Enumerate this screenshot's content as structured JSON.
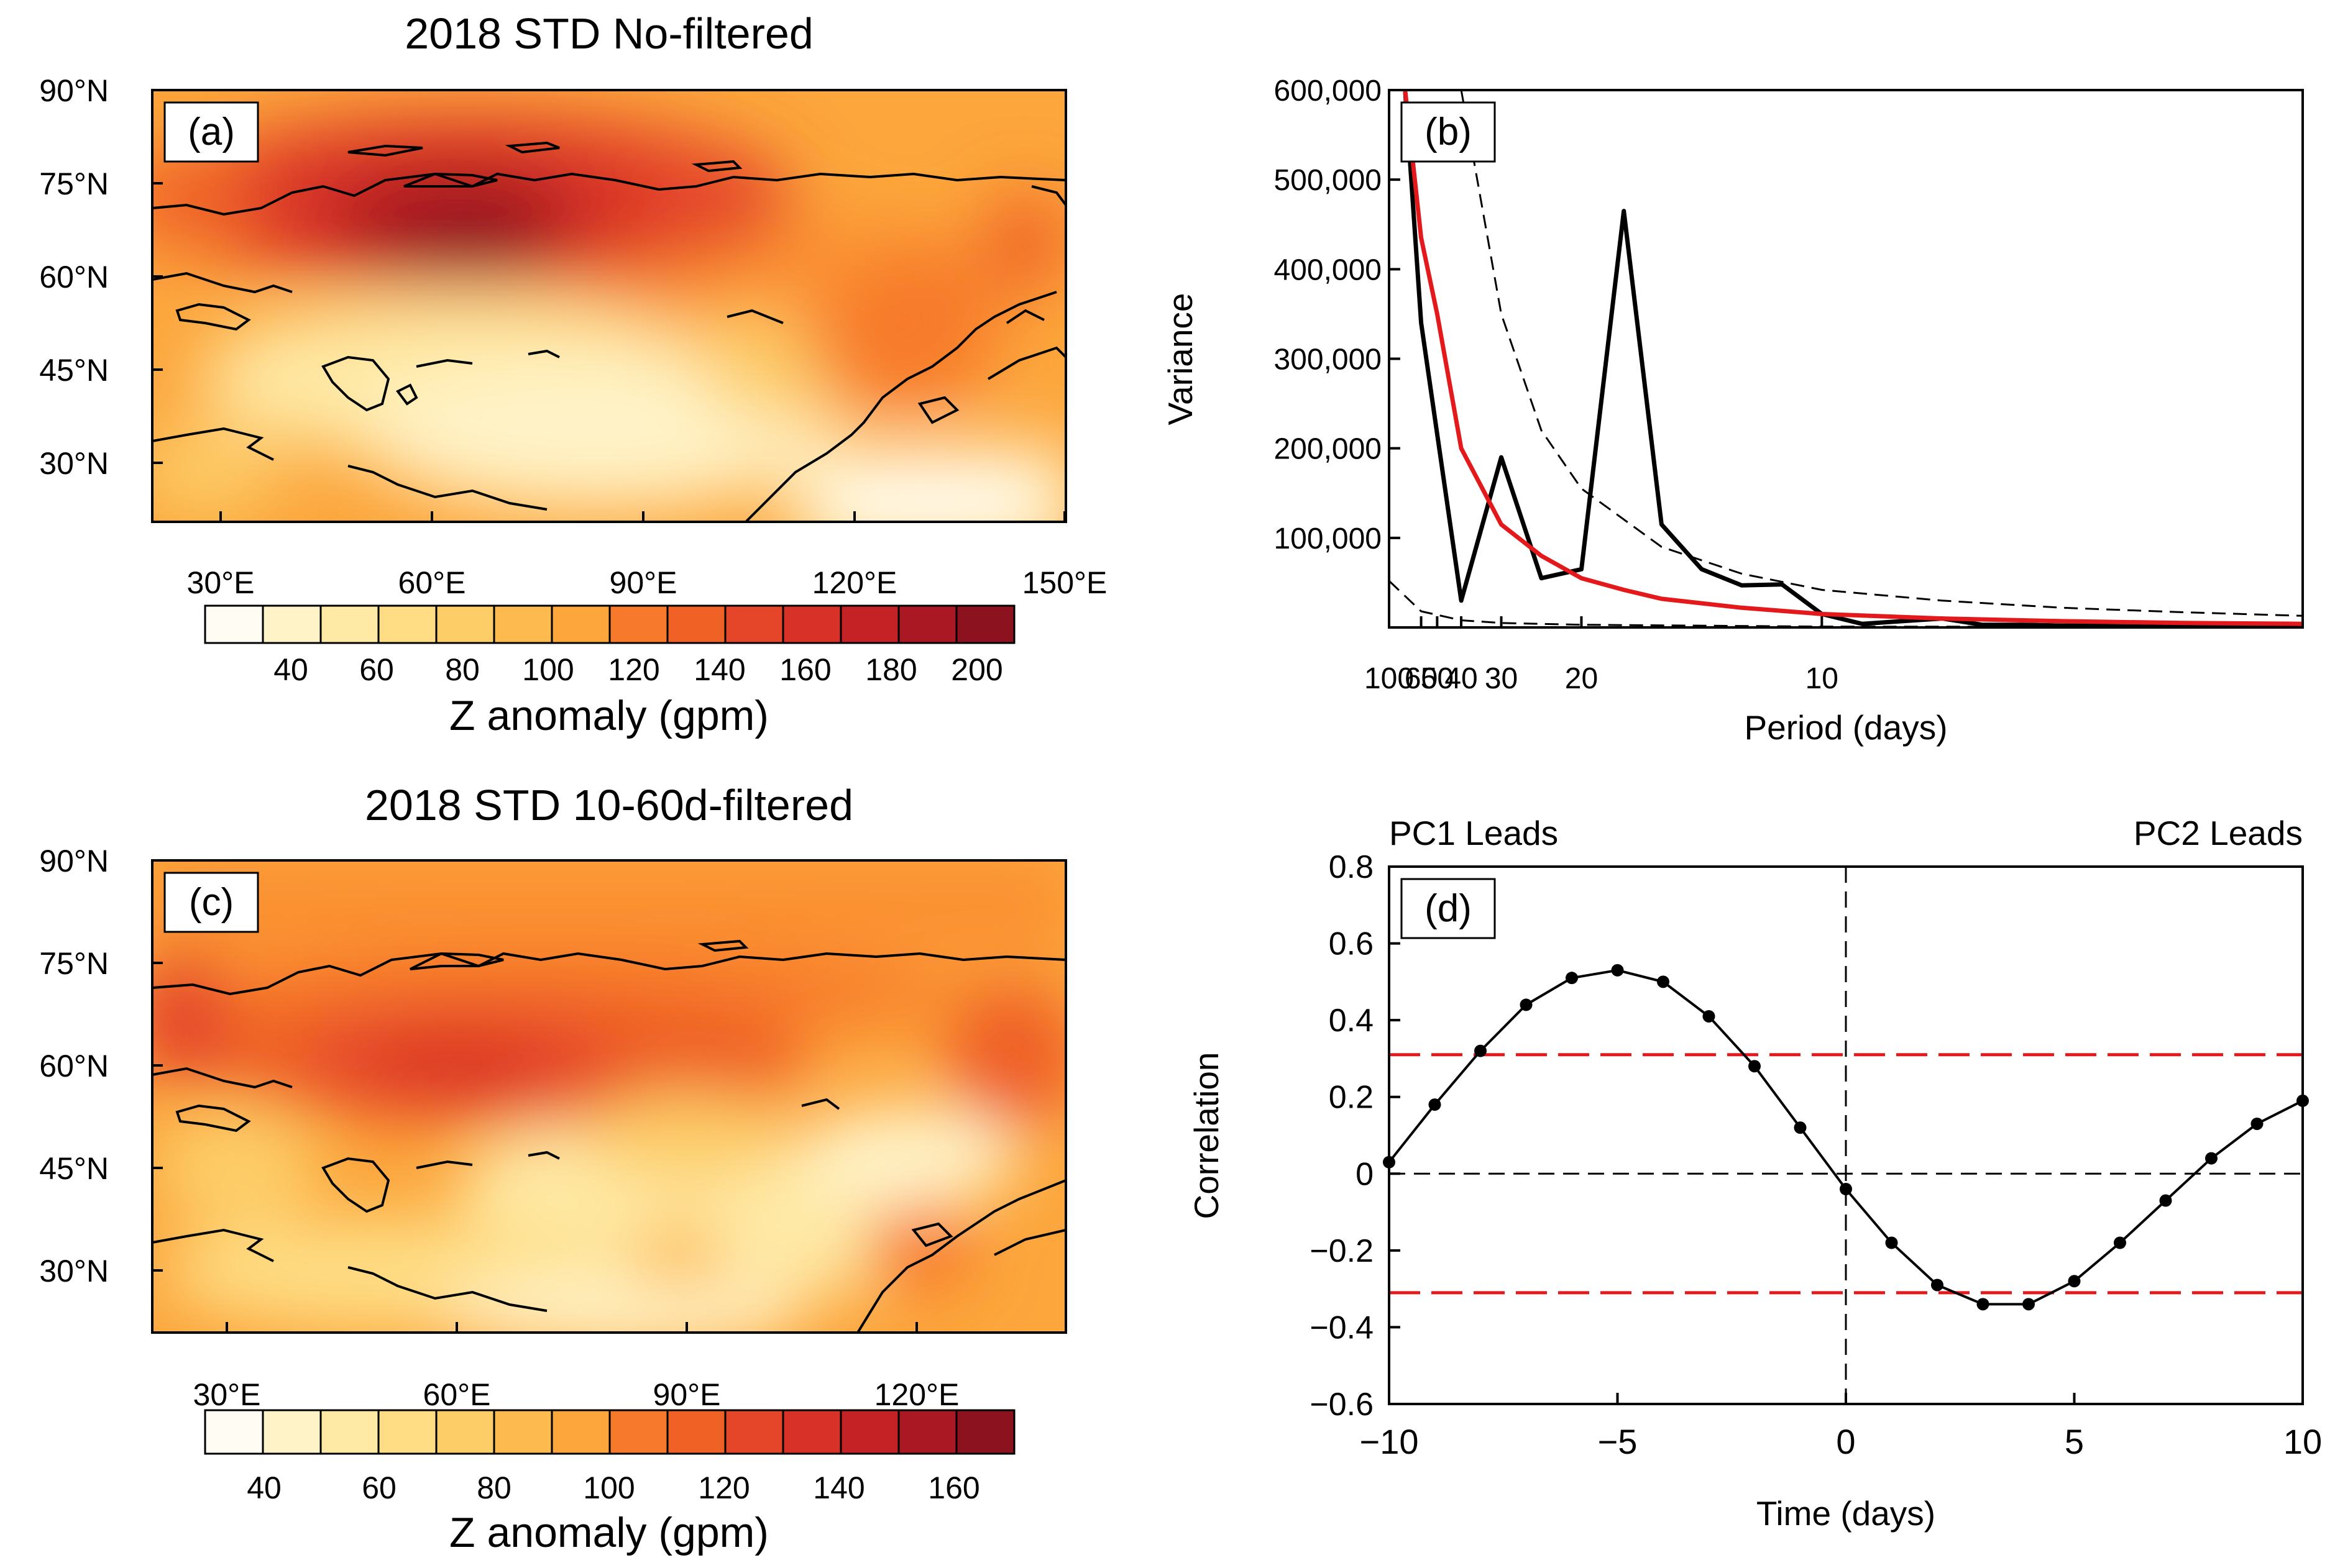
{
  "colors": {
    "scale": [
      "#fffdf3",
      "#fff3c7",
      "#fee9a5",
      "#fedd84",
      "#fdcd68",
      "#fdbb4f",
      "#fca63c",
      "#fb9032",
      "#f77a2c",
      "#ef6125",
      "#e5462a",
      "#d83228",
      "#c52226",
      "#a91823",
      "#8c1220"
    ],
    "red_line": "#e3191c",
    "black": "#000000"
  },
  "panel_a": {
    "title": "2018 STD No-filtered",
    "label": "(a)",
    "lat_ticks": [
      "90°N",
      "75°N",
      "60°N",
      "45°N",
      "30°N"
    ],
    "lon_ticks": [
      "30°E",
      "60°E",
      "90°E",
      "120°E",
      "150°E"
    ],
    "colorbar_ticks": [
      "40",
      "60",
      "80",
      "100",
      "120",
      "140",
      "160",
      "180",
      "200"
    ],
    "colorbar_title": "Z anomaly (gpm)"
  },
  "panel_c": {
    "title": "2018 STD 10-60d-filtered",
    "label": "(c)",
    "lat_ticks": [
      "90°N",
      "75°N",
      "60°N",
      "45°N",
      "30°N"
    ],
    "lon_ticks": [
      "30°E",
      "60°E",
      "90°E",
      "120°E"
    ],
    "colorbar_ticks": [
      "40",
      "60",
      "80",
      "100",
      "120",
      "140",
      "160"
    ],
    "colorbar_title": "Z anomaly (gpm)"
  },
  "chart_data": [
    {
      "panel": "b",
      "type": "line",
      "label": "(b)",
      "xlabel": "Period (days)",
      "ylabel": "Variance",
      "x_ticks": [
        "100",
        "60",
        "50",
        "40",
        "30",
        "20",
        "10"
      ],
      "x_tick_values": [
        100,
        60,
        50,
        40,
        30,
        20,
        10
      ],
      "y_ticks": [
        "600,000",
        "500,000",
        "400,000",
        "300,000",
        "200,000",
        "100,000"
      ],
      "y_tick_values": [
        600000,
        500000,
        400000,
        300000,
        200000,
        100000
      ],
      "ylim": [
        0,
        600000
      ],
      "x_frequency_range": [
        0.01,
        0.2
      ],
      "series": [
        {
          "name": "spectrum",
          "color": "#000000",
          "style": "solid",
          "x": [
            75,
            60,
            40,
            30,
            24,
            20,
            17,
            15,
            13.33,
            12,
            10.9,
            10,
            9.23,
            8.57,
            8,
            7.5,
            7.06,
            6.67,
            6.32,
            6,
            5.71,
            5.45,
            5.22,
            5
          ],
          "values": [
            600000,
            340000,
            30000,
            190000,
            55000,
            65000,
            465000,
            115000,
            65000,
            47000,
            48000,
            15000,
            4000,
            7000,
            10000,
            3000,
            3000,
            2000,
            2000,
            1000,
            1000,
            1000,
            1000,
            1000
          ]
        },
        {
          "name": "red-noise",
          "color": "#e3191c",
          "style": "solid",
          "x": [
            75,
            60,
            50,
            40,
            30,
            24,
            20,
            17,
            15,
            12,
            10,
            8,
            6.67,
            5.71,
            5
          ],
          "values": [
            600000,
            435000,
            350000,
            200000,
            115000,
            80000,
            55000,
            42000,
            32000,
            22000,
            15000,
            10000,
            7000,
            5000,
            4000
          ]
        },
        {
          "name": "upper-bound",
          "color": "#000000",
          "style": "dashed",
          "x": [
            40,
            30,
            24,
            20,
            15,
            12,
            10,
            8,
            6.67,
            5.71,
            5
          ],
          "values": [
            600000,
            350000,
            220000,
            155000,
            90000,
            60000,
            42000,
            30000,
            22000,
            17000,
            13000
          ]
        },
        {
          "name": "lower-bound",
          "color": "#000000",
          "style": "dashed",
          "x": [
            100,
            60,
            40,
            30,
            20,
            10,
            5
          ],
          "values": [
            52000,
            18000,
            8000,
            5000,
            3000,
            1000,
            500
          ]
        }
      ]
    },
    {
      "panel": "d",
      "type": "line",
      "label": "(d)",
      "xlabel": "Time (days)",
      "ylabel": "Correlation",
      "left_note": "PC1 Leads",
      "right_note": "PC2 Leads",
      "x_ticks": [
        "−10",
        "−5",
        "0",
        "5",
        "10"
      ],
      "x_tick_values": [
        -10,
        -5,
        0,
        5,
        10
      ],
      "y_ticks": [
        "0.8",
        "0.6",
        "0.4",
        "0.2",
        "0",
        "−0.2",
        "−0.4",
        "−0.6"
      ],
      "y_tick_values": [
        0.8,
        0.6,
        0.4,
        0.2,
        0,
        -0.2,
        -0.4,
        -0.6
      ],
      "xlim": [
        -10,
        10
      ],
      "ylim": [
        -0.6,
        0.8
      ],
      "significance": [
        0.31,
        -0.31
      ],
      "x": [
        -10,
        -9,
        -8,
        -7,
        -6,
        -5,
        -4,
        -3,
        -2,
        -1,
        0,
        1,
        2,
        3,
        4,
        5,
        6,
        7,
        8,
        9,
        10
      ],
      "values": [
        0.03,
        0.18,
        0.32,
        0.44,
        0.51,
        0.53,
        0.5,
        0.41,
        0.28,
        0.12,
        -0.04,
        -0.18,
        -0.29,
        -0.34,
        -0.34,
        -0.28,
        -0.18,
        -0.07,
        0.04,
        0.13,
        0.19
      ]
    }
  ]
}
